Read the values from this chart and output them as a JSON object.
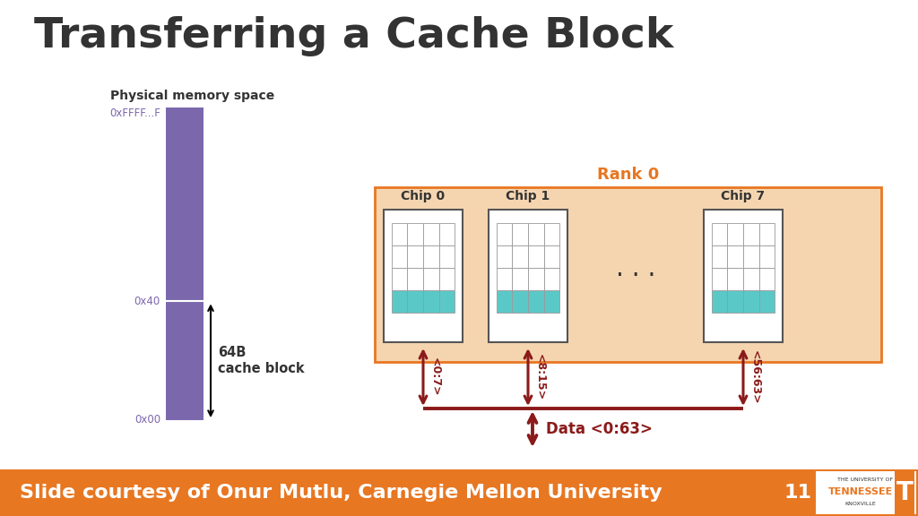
{
  "title": "Transferring a Cache Block",
  "title_fontsize": 34,
  "title_color": "#333333",
  "bg_color": "#ffffff",
  "footer_color": "#E87722",
  "footer_text": "Slide courtesy of Onur Mutlu, Carnegie Mellon University",
  "footer_text_color": "#ffffff",
  "footer_fontsize": 16,
  "page_number": "11",
  "mem_label": "Physical memory space",
  "mem_bar_color": "#7B68AC",
  "mem_label_color": "#7B68AC",
  "mem_top_label": "0xFFFF...F",
  "mem_bot_label": "0x40",
  "mem_bot_label2": "0x00",
  "rank_box_color": "#F5D5B0",
  "rank_box_edge_color": "#E87722",
  "rank_label": "Rank 0",
  "rank_label_color": "#E87722",
  "chip_label_color": "#333333",
  "chip_highlight_color": "#5BC8C8",
  "chip_bg_color": "#ffffff",
  "chip_edge_color": "#555555",
  "arrow_color": "#8B1A1A",
  "data_arrow_label": "Data <0:63>",
  "chip0_label": "Chip 0",
  "chip1_label": "Chip 1",
  "chip7_label": "Chip 7",
  "arrow0_label": "<0:7>",
  "arrow1_label": "<8:15>",
  "arrow7_label": "<56:63>"
}
